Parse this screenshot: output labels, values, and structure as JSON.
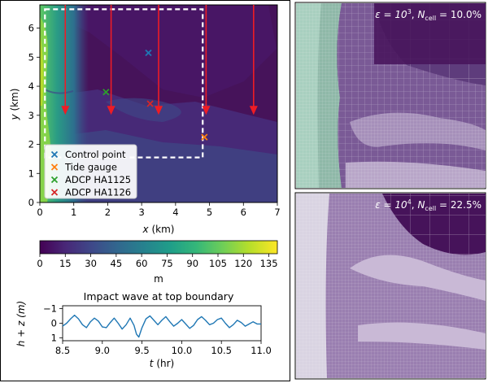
{
  "chart_data": [
    {
      "type": "heatmap",
      "xlabel_var": "x",
      "xlabel_unit": " (km)",
      "ylabel_var": "y",
      "ylabel_unit": " (km)",
      "xlim": [
        0,
        7
      ],
      "ylim": [
        0,
        6.8
      ],
      "x_ticks": [
        "0",
        "1",
        "2",
        "3",
        "4",
        "5",
        "6",
        "7"
      ],
      "y_ticks": [
        "0",
        "1",
        "2",
        "3",
        "4",
        "5",
        "6"
      ],
      "domain_box": {
        "x": [
          0.15,
          4.8
        ],
        "y": [
          1.55,
          6.65
        ]
      },
      "inflow_arrows_x": [
        0.75,
        2.1,
        3.5,
        4.9,
        6.3
      ],
      "inflow_arrows_y": [
        6.8,
        3.1
      ],
      "legend_location": "lower left",
      "markers": [
        {
          "label": "Control point",
          "x": 3.2,
          "y": 5.15,
          "color": "#1f77b4"
        },
        {
          "label": "Tide gauge",
          "x": 4.85,
          "y": 2.25,
          "color": "#ff7f0e"
        },
        {
          "label": "ADCP HA1125",
          "x": 1.95,
          "y": 3.8,
          "color": "#2ca02c"
        },
        {
          "label": "ADCP HA1126",
          "x": 3.25,
          "y": 3.4,
          "color": "#d62728"
        }
      ]
    },
    {
      "type": "colorbar",
      "colormap": "viridis",
      "range": [
        0,
        140
      ],
      "ticks": [
        "0",
        "15",
        "30",
        "45",
        "60",
        "75",
        "90",
        "105",
        "120",
        "135"
      ],
      "tick_values": [
        0,
        15,
        30,
        45,
        60,
        75,
        90,
        105,
        120,
        135
      ],
      "unit": "m"
    },
    {
      "type": "line",
      "title": "Impact wave at top boundary",
      "xlabel_var": "t",
      "xlabel_unit": " (hr)",
      "ylabel": "h + z (m)",
      "xlim": [
        8.5,
        11.0
      ],
      "ylim": [
        1.2,
        -1.2
      ],
      "y_inverted": true,
      "x_ticks": [
        "8.5",
        "9.0",
        "9.5",
        "10.0",
        "10.5",
        "11.0"
      ],
      "x_tick_values": [
        8.5,
        9.0,
        9.5,
        10.0,
        10.5,
        11.0
      ],
      "y_ticks": [
        "−1",
        "0",
        "1"
      ],
      "y_tick_values": [
        -1,
        0,
        1
      ],
      "color": "#1f77b4",
      "series": [
        {
          "x": [
            8.5,
            8.55,
            8.6,
            8.65,
            8.7,
            8.75,
            8.8,
            8.85,
            8.9,
            8.95,
            9.0,
            9.05,
            9.1,
            9.15,
            9.2,
            9.25,
            9.3,
            9.35,
            9.4,
            9.43,
            9.46,
            9.5,
            9.55,
            9.6,
            9.65,
            9.7,
            9.75,
            9.8,
            9.85,
            9.9,
            9.95,
            10.0,
            10.05,
            10.1,
            10.15,
            10.2,
            10.25,
            10.3,
            10.35,
            10.4,
            10.45,
            10.5,
            10.55,
            10.6,
            10.65,
            10.7,
            10.75,
            10.8,
            10.85,
            10.9,
            10.95,
            11.0
          ],
          "values": [
            0.2,
            0.0,
            -0.3,
            -0.55,
            -0.3,
            0.1,
            0.3,
            -0.1,
            -0.35,
            -0.15,
            0.25,
            0.3,
            -0.05,
            -0.35,
            0.0,
            0.4,
            0.1,
            -0.35,
            0.15,
            0.75,
            0.95,
            0.3,
            -0.3,
            -0.5,
            -0.2,
            0.1,
            -0.2,
            -0.45,
            -0.1,
            0.2,
            0.0,
            -0.25,
            0.05,
            0.35,
            0.15,
            -0.25,
            -0.45,
            -0.2,
            0.1,
            0.0,
            -0.25,
            -0.35,
            0.0,
            0.3,
            0.1,
            -0.2,
            -0.05,
            0.2,
            0.05,
            -0.1,
            0.05,
            0.05
          ]
        }
      ]
    },
    {
      "type": "heatmap",
      "panel": "mesh inset top",
      "label_eps": "ε = 10",
      "label_eps_exp": "3",
      "label_n": "N",
      "label_n_sub": "cell",
      "label_value": " = 10.0%"
    },
    {
      "type": "heatmap",
      "panel": "mesh inset bottom",
      "label_eps": "ε = 10",
      "label_eps_exp": "4",
      "label_n": "N",
      "label_n_sub": "cell",
      "label_value": " = 22.5%"
    }
  ],
  "colors": {
    "deep": "#46135a",
    "mesh_top_bg": "#5e3c7c",
    "mesh_bottom_bg": "#9a7fb0",
    "divider": "#000000"
  }
}
